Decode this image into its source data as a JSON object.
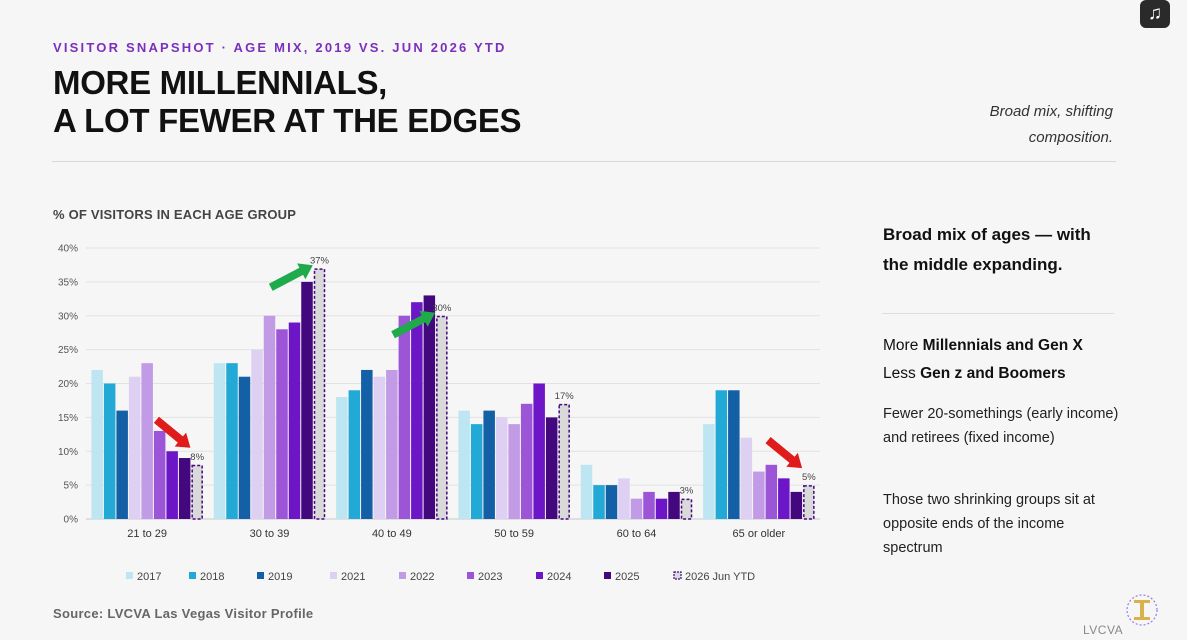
{
  "header": {
    "kicker": "VISITOR SNAPSHOT · AGE MIX, 2019 VS. JUN 2026 YTD",
    "title_line1": "MORE MILLENNIALS,",
    "title_line2": "A LOT FEWER AT THE EDGES",
    "tagline_line1": "Broad mix, shifting",
    "tagline_line2": "composition."
  },
  "chart_title": "% OF VISITORS IN EACH AGE GROUP",
  "source": "Source: LVCVA Las Vegas Visitor Profile",
  "sidebar": {
    "headline_line1": "Broad mix of ages — with",
    "headline_line2": "the middle expanding.",
    "more_prefix": "More ",
    "more_bold": "Millennials and Gen X",
    "less_prefix": "Less ",
    "less_bold": "Gen z and Boomers",
    "para1_line1": "Fewer 20-somethings (early income)",
    "para1_line2": "and retirees (fixed income)",
    "para2_line1": "Those two shrinking groups sit at",
    "para2_line2": "opposite ends of the income",
    "para2_line3": "spectrum"
  },
  "icons": {
    "top_right": "music-note-icon",
    "bottom_right": "lvcva-logo"
  },
  "logo_text": "LVCVA",
  "chart_data": {
    "type": "bar",
    "title": "% OF VISITORS IN EACH AGE GROUP",
    "categories": [
      "21 to 29",
      "30 to 39",
      "40 to 49",
      "50 to 59",
      "60 to 64",
      "65 or older"
    ],
    "ylim": [
      0,
      40
    ],
    "yticks": [
      "0%",
      "5%",
      "10%",
      "15%",
      "20%",
      "25%",
      "30%",
      "35%",
      "40%"
    ],
    "grid": true,
    "legend_position": "bottom",
    "series": [
      {
        "name": "2017",
        "color": "#bde6f2",
        "values": [
          22,
          23,
          18,
          16,
          8,
          14
        ]
      },
      {
        "name": "2018",
        "color": "#22a9d6",
        "values": [
          20,
          23,
          19,
          14,
          5,
          19
        ]
      },
      {
        "name": "2019",
        "color": "#1460a6",
        "values": [
          16,
          21,
          22,
          16,
          5,
          19
        ]
      },
      {
        "name": "2021",
        "color": "#ddd0f2",
        "values": [
          21,
          25,
          21,
          15,
          6,
          12
        ]
      },
      {
        "name": "2022",
        "color": "#c29be6",
        "values": [
          23,
          30,
          22,
          14,
          3,
          7
        ]
      },
      {
        "name": "2023",
        "color": "#9b55d6",
        "values": [
          13,
          28,
          30,
          17,
          4,
          8
        ]
      },
      {
        "name": "2024",
        "color": "#6c16c8",
        "values": [
          10,
          29,
          32,
          20,
          3,
          6
        ]
      },
      {
        "name": "2025",
        "color": "#44087e",
        "values": [
          9,
          35,
          33,
          15,
          4,
          4
        ]
      },
      {
        "name": "2026 Jun YTD",
        "color": "#d9d9d9",
        "stroke": "#44087e",
        "dashed": true,
        "values": [
          8,
          37,
          30,
          17,
          3,
          5
        ]
      }
    ],
    "data_labels": [
      {
        "category": "21 to 29",
        "series": "2026 Jun YTD",
        "text": "8%"
      },
      {
        "category": "30 to 39",
        "series": "2026 Jun YTD",
        "text": "37%"
      },
      {
        "category": "40 to 49",
        "series": "2026 Jun YTD",
        "text": "30%"
      },
      {
        "category": "50 to 59",
        "series": "2026 Jun YTD",
        "text": "17%"
      },
      {
        "category": "60 to 64",
        "series": "2026 Jun YTD",
        "text": "3%"
      },
      {
        "category": "65 or older",
        "series": "2026 Jun YTD",
        "text": "5%"
      }
    ],
    "arrows": [
      {
        "category": "21 to 29",
        "direction": "down",
        "color": "#e01b1b"
      },
      {
        "category": "30 to 39",
        "direction": "up",
        "color": "#1faa4c"
      },
      {
        "category": "40 to 49",
        "direction": "up",
        "color": "#1faa4c"
      },
      {
        "category": "65 or older",
        "direction": "down",
        "color": "#e01b1b"
      }
    ]
  }
}
